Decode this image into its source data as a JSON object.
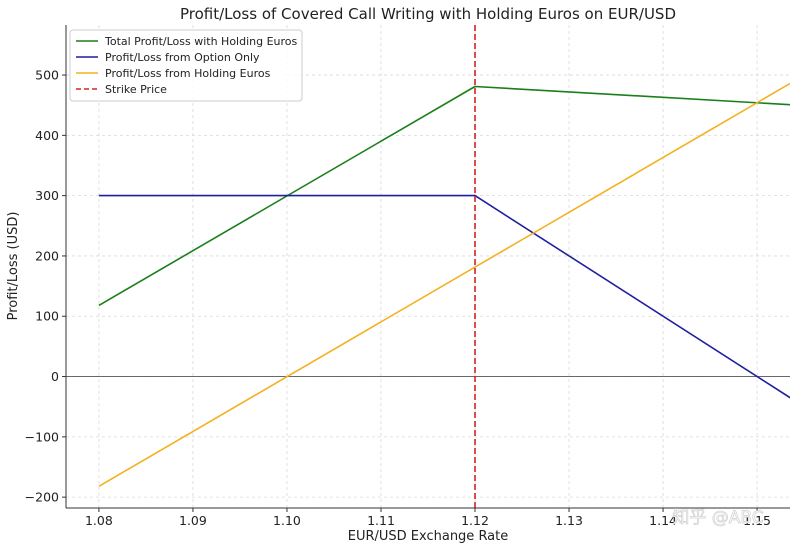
{
  "chart_data": {
    "type": "line",
    "title": "Profit/Loss of Covered Call Writing with Holding Euros on EUR/USD",
    "xlabel": "EUR/USD Exchange Rate",
    "ylabel": "Profit/Loss (USD)",
    "xlim": [
      1.0765,
      1.1535
    ],
    "ylim": [
      -218,
      583
    ],
    "xticks": [
      1.08,
      1.09,
      1.1,
      1.11,
      1.12,
      1.13,
      1.14,
      1.15
    ],
    "xtick_labels": [
      "1.08",
      "1.09",
      "1.10",
      "1.11",
      "1.12",
      "1.13",
      "1.14",
      "1.15"
    ],
    "yticks": [
      -200,
      -100,
      0,
      100,
      200,
      300,
      400,
      500
    ],
    "ytick_labels": [
      "−200",
      "−100",
      "0",
      "100",
      "200",
      "300",
      "400",
      "500"
    ],
    "grid": true,
    "legend_position": "top-left",
    "zero_line": true,
    "series": [
      {
        "name": "Total Profit/Loss with Holding Euros",
        "color": "#1a7f1a",
        "style": "solid",
        "x": [
          1.08,
          1.12,
          1.16
        ],
        "y": [
          118,
          481,
          445
        ]
      },
      {
        "name": "Profit/Loss from Option Only",
        "color": "#1f1fa0",
        "style": "solid",
        "x": [
          1.08,
          1.12,
          1.16
        ],
        "y": [
          300,
          300,
          -100
        ]
      },
      {
        "name": "Profit/Loss from Holding Euros",
        "color": "#f5b01f",
        "style": "solid",
        "x": [
          1.08,
          1.16
        ],
        "y": [
          -182,
          545
        ]
      }
    ],
    "vlines": [
      {
        "name": "Strike Price",
        "x": 1.12,
        "color": "#d62222",
        "style": "dashed"
      }
    ]
  },
  "watermark": "知乎 @ABC"
}
